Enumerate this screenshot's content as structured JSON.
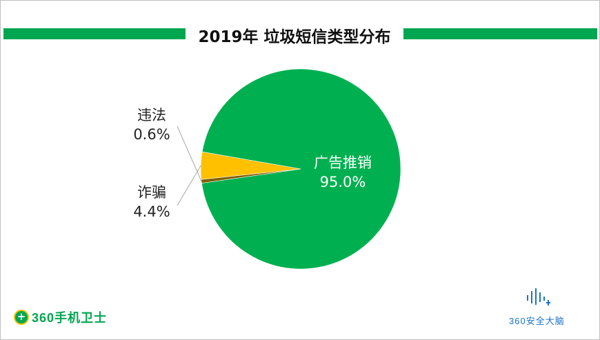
{
  "header": {
    "title": "2019年 垃圾短信类型分布"
  },
  "footer": {
    "left_logo": "360手机卫士",
    "right_logo": "360安全大脑",
    "left_logo_icon": "plus-circle-icon",
    "right_logo_icon": "signal-bars-icon"
  },
  "colors": {
    "accent": "#00a650",
    "advertising": "#00b050",
    "illegal": "#806000",
    "fraud": "#ffc000",
    "brand_blue": "#1a73c9"
  },
  "chart_data": {
    "type": "pie",
    "title": "2019年 垃圾短信类型分布",
    "slices": [
      {
        "label": "广告推销",
        "value": 95.0,
        "value_label": "95.0%",
        "color": "#00b050"
      },
      {
        "label": "违法",
        "value": 0.6,
        "value_label": "0.6%",
        "color": "#806000"
      },
      {
        "label": "诈骗",
        "value": 4.4,
        "value_label": "4.4%",
        "color": "#ffc000"
      }
    ],
    "legend": "none"
  }
}
